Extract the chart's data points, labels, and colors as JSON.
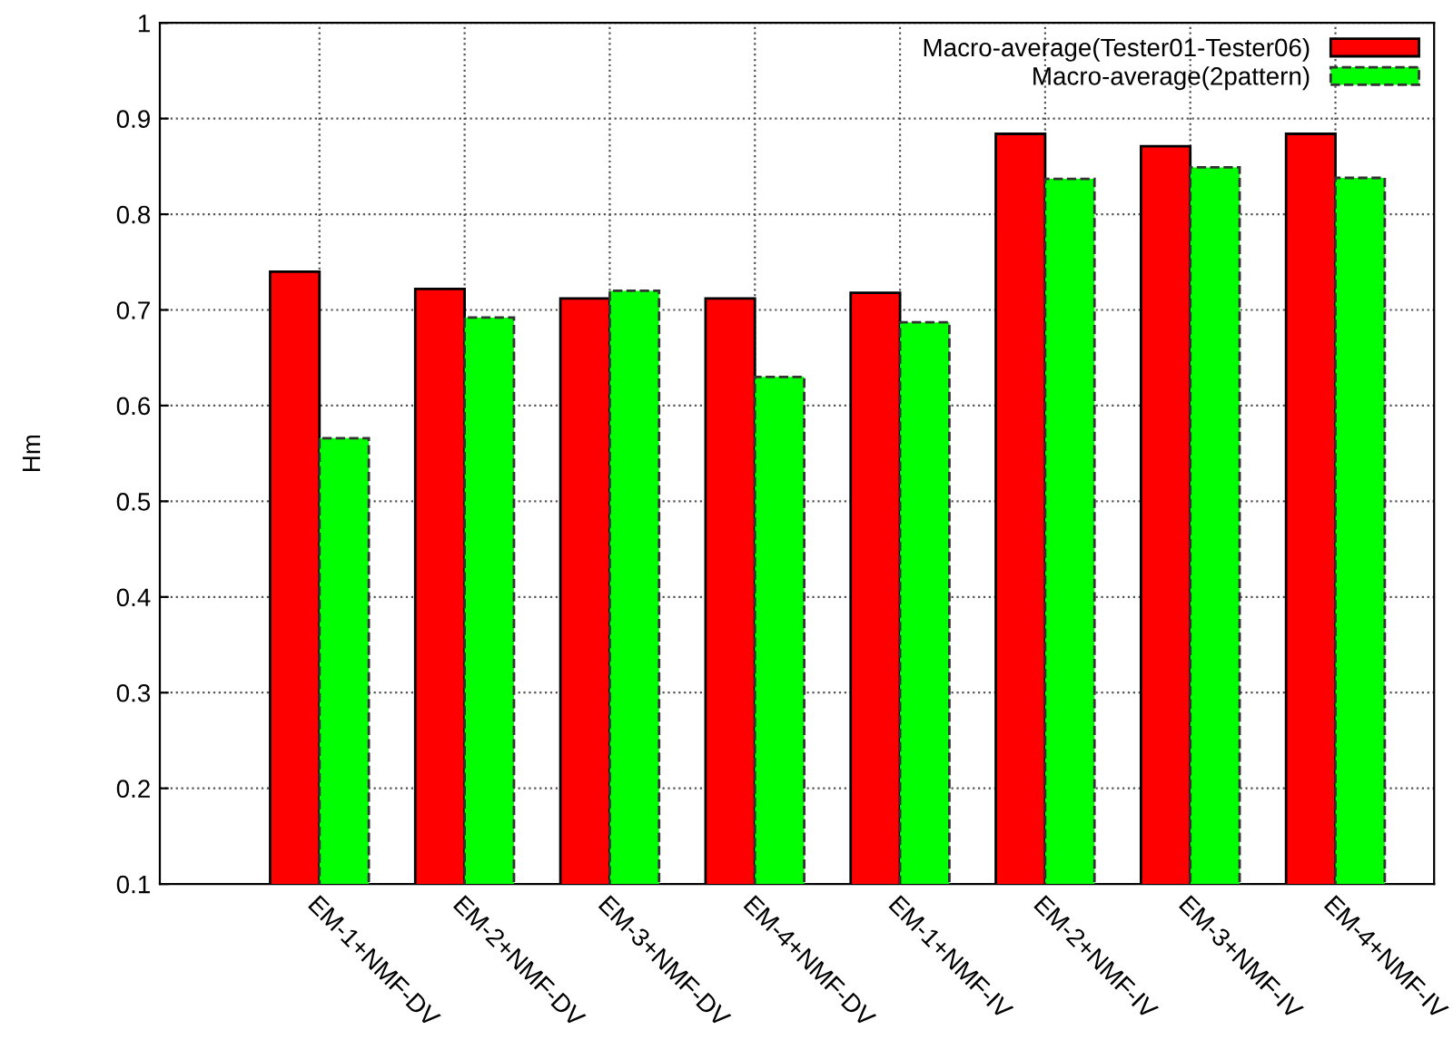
{
  "chart_data": {
    "type": "bar",
    "ylabel": "Hm",
    "categories": [
      "EM-1+NMF-DV",
      "EM-2+NMF-DV",
      "EM-3+NMF-DV",
      "EM-4+NMF-DV",
      "EM-1+NMF-IV",
      "EM-2+NMF-IV",
      "EM-3+NMF-IV",
      "EM-4+NMF-IV"
    ],
    "series": [
      {
        "name": "Macro-average(Tester01-Tester06)",
        "color": "#ff0000",
        "line_style": "solid",
        "values": [
          0.74,
          0.722,
          0.712,
          0.712,
          0.718,
          0.884,
          0.871,
          0.884
        ]
      },
      {
        "name": "Macro-average(2pattern)",
        "color": "#00ff00",
        "line_style": "dashed",
        "values": [
          0.566,
          0.692,
          0.72,
          0.63,
          0.687,
          0.837,
          0.849,
          0.838
        ]
      }
    ],
    "ylim": [
      0.1,
      1
    ],
    "yticks": [
      0.1,
      0.2,
      0.3,
      0.4,
      0.5,
      0.6,
      0.7,
      0.8,
      0.9,
      1
    ],
    "grid": true,
    "legend": "top right"
  }
}
